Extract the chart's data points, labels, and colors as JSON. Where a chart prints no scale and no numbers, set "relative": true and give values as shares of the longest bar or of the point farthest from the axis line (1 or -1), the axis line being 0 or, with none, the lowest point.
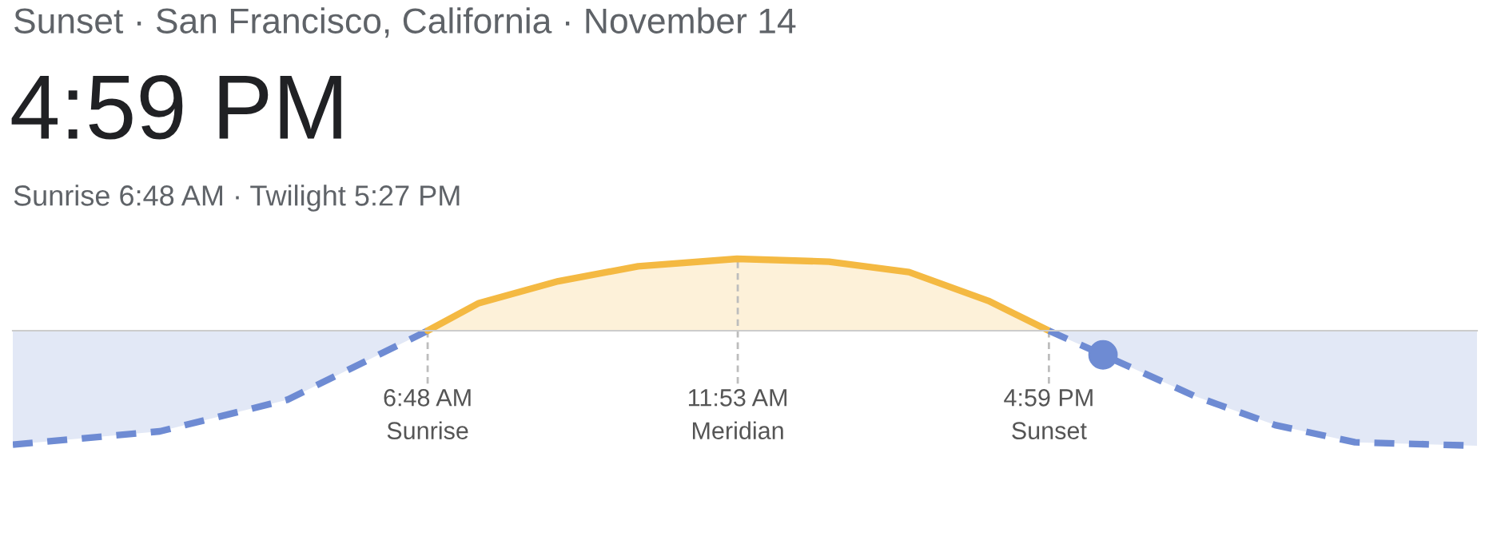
{
  "chart_data": {
    "type": "area",
    "title": "Sunset · San Francisco, California · November 14",
    "subtitle": "4:59 PM",
    "annotations": [
      "Sunrise 6:48 AM · Twilight 5:27 PM"
    ],
    "relative": true,
    "xlim": [
      0,
      24
    ],
    "xticks": [
      {
        "value": 6.8,
        "label": "6:48 AM"
      },
      {
        "value": 11.883,
        "label": "11:53 AM"
      },
      {
        "value": 16.983,
        "label": "4:59 PM"
      }
    ],
    "ref_lines": [
      {
        "axis": "x",
        "value": 6.8,
        "label": "Sunrise",
        "color": "#bdbdbd",
        "line_style": "dashed"
      },
      {
        "axis": "x",
        "value": 11.883,
        "label": "Meridian",
        "color": "#bdbdbd",
        "line_style": "dashed"
      },
      {
        "axis": "x",
        "value": 16.983,
        "label": "Sunset",
        "color": "#bdbdbd",
        "line_style": "dashed"
      }
    ],
    "series": [
      {
        "color": "#6e8bd3",
        "line_style": "dashed",
        "x": [
          0,
          2.41,
          4.5,
          6.8
        ],
        "values": [
          -0.99,
          -0.875,
          -0.6,
          0
        ]
      },
      {
        "color": "#f4b942",
        "line_style": "solid",
        "x": [
          6.8,
          7.64,
          8.94,
          10.25,
          11.87,
          13.38,
          14.69,
          15.99,
          16.983
        ],
        "values": [
          0,
          0.24,
          0.43,
          0.56,
          0.625,
          0.6,
          0.51,
          0.26,
          0
        ]
      },
      {
        "color": "#6e8bd3",
        "line_style": "dashed",
        "x": [
          16.983,
          17.87,
          19.38,
          20.69,
          22.0,
          24
        ],
        "values": [
          0,
          -0.21,
          -0.57,
          -0.82,
          -0.97,
          -1
        ]
      },
      {
        "type": "scatter",
        "color": "#6e8bd3",
        "marker": "circle",
        "x": [
          17.87
        ],
        "values": [
          -0.21
        ]
      }
    ]
  }
}
